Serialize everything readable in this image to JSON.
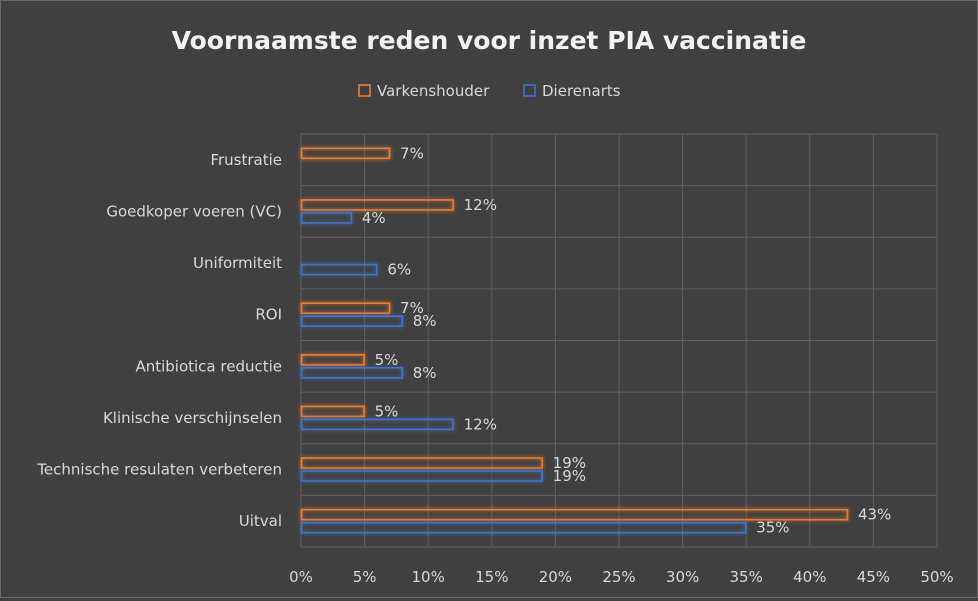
{
  "chart_data": {
    "type": "bar",
    "orientation": "horizontal",
    "title": "Voornaamste reden voor inzet PIA vaccinatie",
    "legend_position": "top",
    "grid": true,
    "xlim": [
      0,
      50
    ],
    "x_ticks": [
      "0%",
      "5%",
      "10%",
      "15%",
      "20%",
      "25%",
      "30%",
      "35%",
      "40%",
      "45%",
      "50%"
    ],
    "categories": [
      "Frustratie",
      "Goedkoper voeren (VC)",
      "Uniformiteit",
      "ROI",
      "Antibiotica reductie",
      "Klinische verschijnselen",
      "Technische resulaten verbeteren",
      "Uitval"
    ],
    "series": [
      {
        "name": "Varkenshouder",
        "color": "#ED7D31",
        "values": [
          7,
          12,
          null,
          7,
          5,
          5,
          19,
          43
        ],
        "labels": [
          "7%",
          "12%",
          "",
          "7%",
          "5%",
          "5%",
          "19%",
          "43%"
        ]
      },
      {
        "name": "Dierenarts",
        "color": "#4472C4",
        "values": [
          null,
          4,
          6,
          8,
          8,
          12,
          19,
          35
        ],
        "labels": [
          "",
          "4%",
          "6%",
          "8%",
          "8%",
          "12%",
          "19%",
          "35%"
        ]
      }
    ]
  }
}
